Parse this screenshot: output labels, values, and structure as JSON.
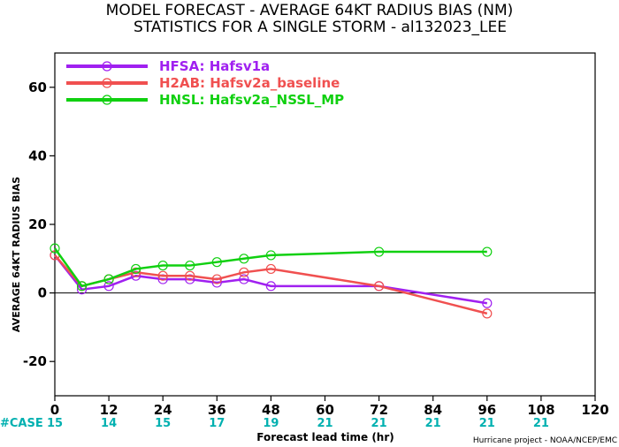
{
  "chart_data": {
    "type": "line",
    "title": [
      "MODEL FORECAST - AVERAGE 64KT RADIUS BIAS (NM)",
      "STATISTICS FOR A SINGLE STORM - al132023_LEE"
    ],
    "xlabel": "Forecast lead time (hr)",
    "ylabel": "AVERAGE 64KT RADIUS BIAS",
    "xlim": [
      0,
      120
    ],
    "ylim": [
      -30,
      70
    ],
    "x_ticks": [
      0,
      12,
      24,
      36,
      48,
      60,
      72,
      84,
      96,
      108,
      120
    ],
    "x_tick_labels": [
      "0",
      "12",
      "24",
      "36",
      "48",
      "60",
      "72",
      "84",
      "96",
      "108",
      "120"
    ],
    "y_ticks": [
      -20,
      0,
      20,
      40,
      60
    ],
    "y_tick_labels": [
      "-20",
      "0",
      "20",
      "40",
      "60"
    ],
    "zero_line": true,
    "legend_position": "top-left",
    "series": [
      {
        "name": "HFSA: Hafsv1a",
        "color": "#a020f0",
        "x": [
          0,
          6,
          12,
          18,
          24,
          30,
          36,
          42,
          48,
          72,
          96
        ],
        "y": [
          11,
          1,
          2,
          5,
          4,
          4,
          3,
          4,
          2,
          2,
          -3
        ]
      },
      {
        "name": "H2AB: Hafsv2a_baseline",
        "color": "#f05050",
        "x": [
          0,
          6,
          12,
          18,
          24,
          30,
          36,
          42,
          48,
          72,
          96
        ],
        "y": [
          11,
          2,
          4,
          6,
          5,
          5,
          4,
          6,
          7,
          2,
          -6
        ]
      },
      {
        "name": "HNSL: Hafsv2a_NSSL_MP",
        "color": "#10d010",
        "x": [
          0,
          6,
          12,
          18,
          24,
          30,
          36,
          42,
          48,
          72,
          96
        ],
        "y": [
          13,
          2,
          4,
          7,
          8,
          8,
          9,
          10,
          11,
          12,
          12
        ]
      }
    ],
    "case_label": "#CASE",
    "case_counts": [
      {
        "x": 0,
        "label": "15"
      },
      {
        "x": 12,
        "label": "14"
      },
      {
        "x": 24,
        "label": "15"
      },
      {
        "x": 36,
        "label": "17"
      },
      {
        "x": 48,
        "label": "19"
      },
      {
        "x": 60,
        "label": "21"
      },
      {
        "x": 72,
        "label": "21"
      },
      {
        "x": 84,
        "label": "21"
      },
      {
        "x": 96,
        "label": "21"
      },
      {
        "x": 108,
        "label": "21"
      }
    ],
    "credit": "Hurricane project - NOAA/NCEP/EMC",
    "colors": {
      "case_label": "#00b0b0",
      "case_counts": "#00b0b0",
      "zero_line": "#000000"
    }
  }
}
